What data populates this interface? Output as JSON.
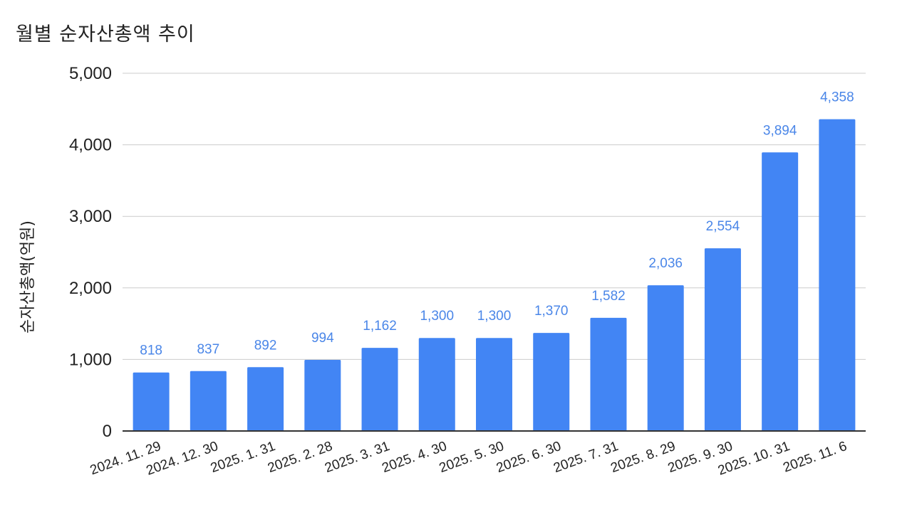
{
  "chart_data": {
    "type": "bar",
    "title": "월별 순자산총액 추이",
    "xlabel": "",
    "ylabel": "순자산총액(억원)",
    "categories": [
      "2024. 11. 29",
      "2024. 12. 30",
      "2025. 1. 31",
      "2025. 2. 28",
      "2025. 3. 31",
      "2025. 4. 30",
      "2025. 5. 30",
      "2025. 6. 30",
      "2025. 7. 31",
      "2025. 8. 29",
      "2025. 9. 30",
      "2025. 10. 31",
      "2025. 11. 6"
    ],
    "values": [
      818,
      837,
      892,
      994,
      1162,
      1300,
      1300,
      1370,
      1582,
      2036,
      2554,
      3894,
      4358
    ],
    "value_labels": [
      "818",
      "837",
      "892",
      "994",
      "1,162",
      "1,300",
      "1,300",
      "1,370",
      "1,582",
      "2,036",
      "2,554",
      "3,894",
      "4,358"
    ],
    "ylim": [
      0,
      5000
    ],
    "yticks": [
      0,
      1000,
      2000,
      3000,
      4000,
      5000
    ],
    "ytick_labels": [
      "0",
      "1,000",
      "2,000",
      "3,000",
      "4,000",
      "5,000"
    ],
    "grid": true,
    "legend": "none",
    "colors": {
      "bar": "#4285f4",
      "data_label": "#4a86e8",
      "grid": "#cccccc",
      "axis": "#333333"
    }
  }
}
